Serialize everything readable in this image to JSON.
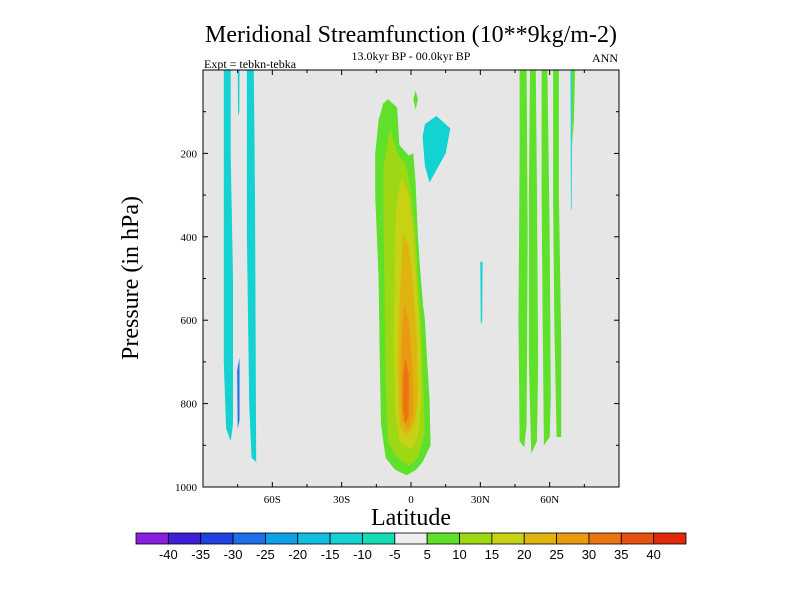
{
  "chart_data": {
    "type": "contour",
    "title": "Meridional Streamfunction (10**9kg/m-2)",
    "subtitle": "13.0kyr BP - 00.0kyr BP",
    "experiment_label": "Expt = tebkn-tebka",
    "season_label": "ANN",
    "xlabel": "Latitude",
    "ylabel": "Pressure (in hPa)",
    "xlim": [
      -90,
      90
    ],
    "ylim": [
      1000,
      0
    ],
    "x_ticks": [
      {
        "value": -60,
        "label": "60S"
      },
      {
        "value": -30,
        "label": "30S"
      },
      {
        "value": 0,
        "label": "0"
      },
      {
        "value": 30,
        "label": "30N"
      },
      {
        "value": 60,
        "label": "60N"
      }
    ],
    "y_ticks": [
      {
        "value": 200,
        "label": "200"
      },
      {
        "value": 400,
        "label": "400"
      },
      {
        "value": 600,
        "label": "600"
      },
      {
        "value": 800,
        "label": "800"
      },
      {
        "value": 1000,
        "label": "1000"
      }
    ],
    "levels": [
      -40,
      -35,
      -30,
      -25,
      -20,
      -15,
      -10,
      -5,
      5,
      10,
      15,
      20,
      25,
      30,
      35,
      40
    ],
    "level_labels": [
      "-40",
      "-35",
      "-30",
      "-25",
      "-20",
      "-15",
      "-10",
      "-5",
      "5",
      "10",
      "15",
      "20",
      "25",
      "30",
      "35",
      "40"
    ],
    "colormap": [
      "#8a1fe0",
      "#3f1fd8",
      "#2040e0",
      "#1f6fe8",
      "#10a0e8",
      "#12bfe0",
      "#14d2d2",
      "#16dcb4",
      "#eeeeee",
      "#5fe02a",
      "#9ed814",
      "#c8d214",
      "#e0b410",
      "#e89a10",
      "#ea7410",
      "#e85010",
      "#e02a0a"
    ],
    "background_color": "#e6e6e6",
    "regions": [
      {
        "name": "sh-negative-band-1",
        "fill": "#14d2d2",
        "points": [
          [
            -81,
            0
          ],
          [
            -78,
            0
          ],
          [
            -78,
            200
          ],
          [
            -77,
            500
          ],
          [
            -77,
            850
          ],
          [
            -78,
            890
          ],
          [
            -80,
            860
          ],
          [
            -81,
            700
          ],
          [
            -81,
            200
          ]
        ]
      },
      {
        "name": "sh-negative-band-2",
        "fill": "#14d2d2",
        "points": [
          [
            -71,
            0
          ],
          [
            -68,
            0
          ],
          [
            -67.5,
            300
          ],
          [
            -67,
            940
          ],
          [
            -69,
            930
          ],
          [
            -70,
            800
          ],
          [
            -71,
            400
          ]
        ]
      },
      {
        "name": "sh-narrow-strip",
        "fill": "#14d2d2",
        "points": [
          [
            -75,
            0
          ],
          [
            -74.2,
            0
          ],
          [
            -74.3,
            100
          ],
          [
            -74.8,
            110
          ]
        ]
      },
      {
        "name": "sh-small-negative",
        "fill": "#1f6fe8",
        "points": [
          [
            -75.2,
            720
          ],
          [
            -74.2,
            690
          ],
          [
            -74.2,
            840
          ],
          [
            -75,
            860
          ]
        ]
      },
      {
        "name": "tropical-cell-5",
        "fill": "#5fe02a",
        "points": [
          [
            -14,
            120
          ],
          [
            -12,
            80
          ],
          [
            -10,
            70
          ],
          [
            -6,
            90
          ],
          [
            -5,
            180
          ],
          [
            -1,
            205
          ],
          [
            1,
            200
          ],
          [
            2,
            270
          ],
          [
            3,
            400
          ],
          [
            4,
            480
          ],
          [
            5,
            550
          ],
          [
            6,
            600
          ],
          [
            7,
            700
          ],
          [
            8,
            790
          ],
          [
            8.5,
            900
          ],
          [
            5,
            940
          ],
          [
            2,
            960
          ],
          [
            -2,
            972
          ],
          [
            -7,
            958
          ],
          [
            -11,
            930
          ],
          [
            -13,
            850
          ],
          [
            -13.5,
            700
          ],
          [
            -14,
            500
          ],
          [
            -15.5,
            300
          ],
          [
            -15.5,
            200
          ]
        ]
      },
      {
        "name": "tropical-cell-10",
        "fill": "#9ed814",
        "points": [
          [
            -11,
            200
          ],
          [
            -9,
            140
          ],
          [
            -6,
            200
          ],
          [
            -2,
            230
          ],
          [
            0,
            290
          ],
          [
            2,
            400
          ],
          [
            3,
            500
          ],
          [
            4.5,
            620
          ],
          [
            5.5,
            780
          ],
          [
            6,
            870
          ],
          [
            3,
            930
          ],
          [
            -1,
            950
          ],
          [
            -6,
            930
          ],
          [
            -10,
            890
          ],
          [
            -11,
            750
          ],
          [
            -11.5,
            500
          ],
          [
            -12,
            330
          ],
          [
            -12,
            240
          ]
        ]
      },
      {
        "name": "tropical-cell-15",
        "fill": "#c8d214",
        "points": [
          [
            -6,
            310
          ],
          [
            -4,
            260
          ],
          [
            -1,
            300
          ],
          [
            1,
            390
          ],
          [
            2.5,
            520
          ],
          [
            4,
            650
          ],
          [
            4.5,
            800
          ],
          [
            3,
            880
          ],
          [
            0,
            910
          ],
          [
            -5,
            890
          ],
          [
            -7,
            810
          ],
          [
            -7.5,
            650
          ],
          [
            -7,
            450
          ],
          [
            -6.5,
            350
          ]
        ]
      },
      {
        "name": "tropical-cell-20",
        "fill": "#e0b410",
        "points": [
          [
            -3.5,
            390
          ],
          [
            -1,
            420
          ],
          [
            1,
            520
          ],
          [
            2.5,
            650
          ],
          [
            3,
            790
          ],
          [
            1.5,
            850
          ],
          [
            -2,
            880
          ],
          [
            -5,
            850
          ],
          [
            -5.5,
            700
          ],
          [
            -5,
            560
          ],
          [
            -4,
            450
          ]
        ]
      },
      {
        "name": "tropical-cell-25",
        "fill": "#e89a10",
        "points": [
          [
            -3,
            560
          ],
          [
            -1,
            600
          ],
          [
            0.5,
            700
          ],
          [
            1,
            820
          ],
          [
            -1,
            860
          ],
          [
            -4,
            840
          ],
          [
            -4.5,
            740
          ],
          [
            -4,
            640
          ]
        ]
      },
      {
        "name": "tropical-cell-30",
        "fill": "#ea7410",
        "points": [
          [
            -2.5,
            690
          ],
          [
            -1,
            730
          ],
          [
            -1,
            830
          ],
          [
            -2.5,
            850
          ],
          [
            -3.5,
            810
          ],
          [
            -3.5,
            740
          ]
        ]
      },
      {
        "name": "tropical-gap-notch",
        "fill": "#e6e6e6",
        "points": [
          [
            5,
            560
          ],
          [
            8,
            545
          ],
          [
            8,
            585
          ],
          [
            5.5,
            575
          ]
        ]
      },
      {
        "name": "nh-negative-blob",
        "fill": "#14d2d2",
        "points": [
          [
            6,
            130
          ],
          [
            11,
            110
          ],
          [
            17,
            140
          ],
          [
            15,
            200
          ],
          [
            11,
            240
          ],
          [
            8,
            270
          ],
          [
            6,
            230
          ],
          [
            5,
            160
          ]
        ]
      },
      {
        "name": "nh-positive-blob",
        "fill": "#5fe02a",
        "points": [
          [
            1,
            70
          ],
          [
            2,
            50
          ],
          [
            3,
            70
          ],
          [
            2,
            95
          ]
        ]
      },
      {
        "name": "nh-narrow-strip",
        "fill": "#14d2d2",
        "points": [
          [
            30,
            460
          ],
          [
            31,
            460
          ],
          [
            30.8,
            600
          ],
          [
            30.2,
            610
          ]
        ]
      },
      {
        "name": "nh-positive-band-1",
        "fill": "#5fe02a",
        "points": [
          [
            47,
            0
          ],
          [
            50,
            0
          ],
          [
            50.5,
            400
          ],
          [
            50,
            850
          ],
          [
            49,
            905
          ],
          [
            47,
            890
          ],
          [
            46.5,
            600
          ],
          [
            47,
            200
          ]
        ]
      },
      {
        "name": "nh-positive-band-2",
        "fill": "#5fe02a",
        "points": [
          [
            51.5,
            0
          ],
          [
            54,
            0
          ],
          [
            54.5,
            300
          ],
          [
            55,
            700
          ],
          [
            54.5,
            890
          ],
          [
            52,
            920
          ],
          [
            51,
            700
          ],
          [
            51,
            300
          ]
        ]
      },
      {
        "name": "nh-positive-band-3",
        "fill": "#5fe02a",
        "points": [
          [
            56.5,
            0
          ],
          [
            59,
            0
          ],
          [
            60,
            400
          ],
          [
            60.5,
            780
          ],
          [
            60,
            880
          ],
          [
            57.5,
            900
          ],
          [
            57,
            600
          ],
          [
            56.5,
            300
          ]
        ]
      },
      {
        "name": "nh-positive-band-4",
        "fill": "#5fe02a",
        "points": [
          [
            61.5,
            0
          ],
          [
            64,
            0
          ],
          [
            64,
            300
          ],
          [
            65,
            650
          ],
          [
            65,
            880
          ],
          [
            63,
            880
          ],
          [
            62,
            600
          ],
          [
            61.5,
            300
          ]
        ]
      },
      {
        "name": "nh-positive-sliver",
        "fill": "#5fe02a",
        "points": [
          [
            69.5,
            0
          ],
          [
            71,
            0
          ],
          [
            70.5,
            120
          ],
          [
            69.8,
            180
          ]
        ]
      },
      {
        "name": "nh-negative-sliver",
        "fill": "#14d2d2",
        "points": [
          [
            69,
            0
          ],
          [
            69.6,
            0
          ],
          [
            69.6,
            200
          ],
          [
            69.5,
            330
          ],
          [
            69.2,
            340
          ]
        ]
      }
    ]
  }
}
